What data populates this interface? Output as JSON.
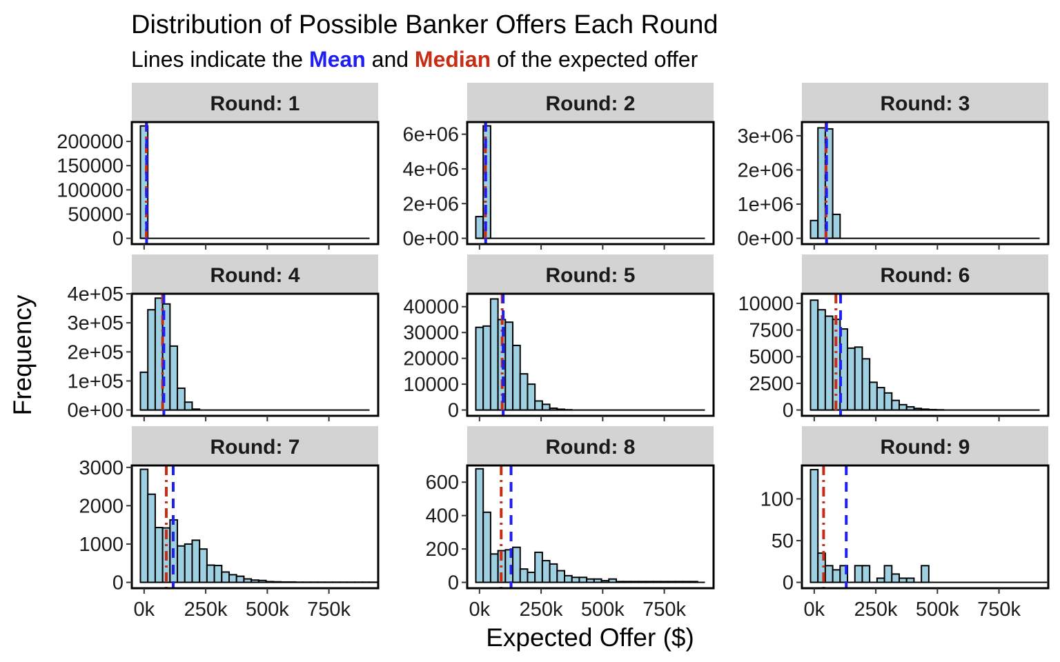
{
  "title": "Distribution of Possible Banker Offers Each Round",
  "subtitle": {
    "before": "Lines indicate the ",
    "mean": "Mean",
    "middle": " and ",
    "median": "Median",
    "after": " of the expected offer"
  },
  "colors": {
    "bar_fill": "#9ed0e1",
    "bar_stroke": "#000000",
    "mean": "#1f1ff2",
    "median": "#c62d14",
    "strip": "#d3d3d3"
  },
  "chart_data": {
    "type": "bar",
    "xlabel": "Expected Offer ($)",
    "ylabel": "Frequency",
    "x_range": [
      -50000,
      950000
    ],
    "bin_width": 30000,
    "bin_start": -15000,
    "x_ticks": [
      0,
      250000,
      500000,
      750000
    ],
    "x_tick_labels": [
      "0k",
      "250k",
      "500k",
      "750k"
    ],
    "panels": [
      {
        "strip": "Round: 1",
        "ylim": [
          0,
          240000
        ],
        "y_ticks": [
          0,
          50000,
          100000,
          150000,
          200000
        ],
        "y_tick_labels": [
          "0",
          "50000",
          "100000",
          "150000",
          "200000"
        ],
        "counts": [
          232000
        ],
        "mean": 10000,
        "median": 9000
      },
      {
        "strip": "Round: 2",
        "ylim": [
          0,
          6700000
        ],
        "y_ticks": [
          0,
          2000000,
          4000000,
          6000000
        ],
        "y_tick_labels": [
          "0e+00",
          "2e+06",
          "4e+06",
          "6e+06"
        ],
        "counts": [
          1250000,
          6480000
        ],
        "mean": 25000,
        "median": 24000
      },
      {
        "strip": "Round: 3",
        "ylim": [
          0,
          3400000
        ],
        "y_ticks": [
          0,
          1000000,
          2000000,
          3000000
        ],
        "y_tick_labels": [
          "0e+00",
          "1e+06",
          "2e+06",
          "3e+06"
        ],
        "counts": [
          520000,
          3230000,
          3200000,
          700000
        ],
        "mean": 50000,
        "median": 48000
      },
      {
        "strip": "Round: 4",
        "ylim": [
          0,
          400000
        ],
        "y_ticks": [
          0,
          100000,
          200000,
          300000,
          400000
        ],
        "y_tick_labels": [
          "0e+00",
          "1e+05",
          "2e+05",
          "3e+05",
          "4e+05"
        ],
        "counts": [
          130000,
          345000,
          385000,
          365000,
          220000,
          75000,
          27000,
          3000
        ],
        "mean": 80000,
        "median": 75000
      },
      {
        "strip": "Round: 5",
        "ylim": [
          0,
          45000
        ],
        "y_ticks": [
          0,
          10000,
          20000,
          30000,
          40000
        ],
        "y_tick_labels": [
          "0",
          "10000",
          "20000",
          "30000",
          "40000"
        ],
        "counts": [
          32000,
          32500,
          43000,
          35000,
          34000,
          25000,
          14000,
          10000,
          3500,
          2200,
          700,
          300,
          100
        ],
        "mean": 96000,
        "median": 92000
      },
      {
        "strip": "Round: 6",
        "ylim": [
          0,
          10900
        ],
        "y_ticks": [
          0,
          2500,
          5000,
          7500,
          10000
        ],
        "y_tick_labels": [
          "0",
          "2500",
          "5000",
          "7500",
          "10000"
        ],
        "counts": [
          10300,
          9400,
          8800,
          8500,
          7600,
          5800,
          5900,
          4800,
          2600,
          2100,
          1600,
          900,
          500,
          300,
          150,
          80,
          40,
          20
        ],
        "mean": 107000,
        "median": 88000
      },
      {
        "strip": "Round: 7",
        "ylim": [
          0,
          3050
        ],
        "y_ticks": [
          0,
          1000,
          2000,
          3000
        ],
        "y_tick_labels": [
          "0",
          "1000",
          "2000",
          "3000"
        ],
        "counts": [
          2950,
          2300,
          1430,
          1420,
          1630,
          950,
          1000,
          1100,
          870,
          450,
          440,
          270,
          200,
          160,
          90,
          60,
          50,
          20,
          15,
          10,
          10,
          5,
          5,
          5,
          5,
          5,
          5,
          5,
          5,
          5,
          5,
          5
        ],
        "mean": 118000,
        "median": 90000
      },
      {
        "strip": "Round: 8",
        "ylim": [
          0,
          700
        ],
        "y_ticks": [
          0,
          200,
          400,
          600
        ],
        "y_tick_labels": [
          "0",
          "200",
          "400",
          "600"
        ],
        "counts": [
          680,
          420,
          170,
          190,
          195,
          210,
          80,
          60,
          180,
          130,
          110,
          70,
          40,
          30,
          30,
          20,
          20,
          10,
          20,
          5,
          5,
          5,
          5,
          5,
          5,
          5,
          5,
          5,
          5,
          5
        ],
        "mean": 128000,
        "median": 88000
      },
      {
        "strip": "Round: 9",
        "ylim": [
          0,
          140
        ],
        "y_ticks": [
          0,
          50,
          100
        ],
        "y_tick_labels": [
          "0",
          "50",
          "100"
        ],
        "counts": [
          135,
          35,
          20,
          15,
          20,
          0,
          20,
          20,
          0,
          5,
          20,
          10,
          5,
          5,
          0,
          20,
          0,
          0,
          0,
          0,
          0,
          0,
          0,
          0,
          0,
          0,
          0,
          0,
          0,
          0,
          0,
          0
        ],
        "mean": 130000,
        "median": 38000
      }
    ]
  }
}
